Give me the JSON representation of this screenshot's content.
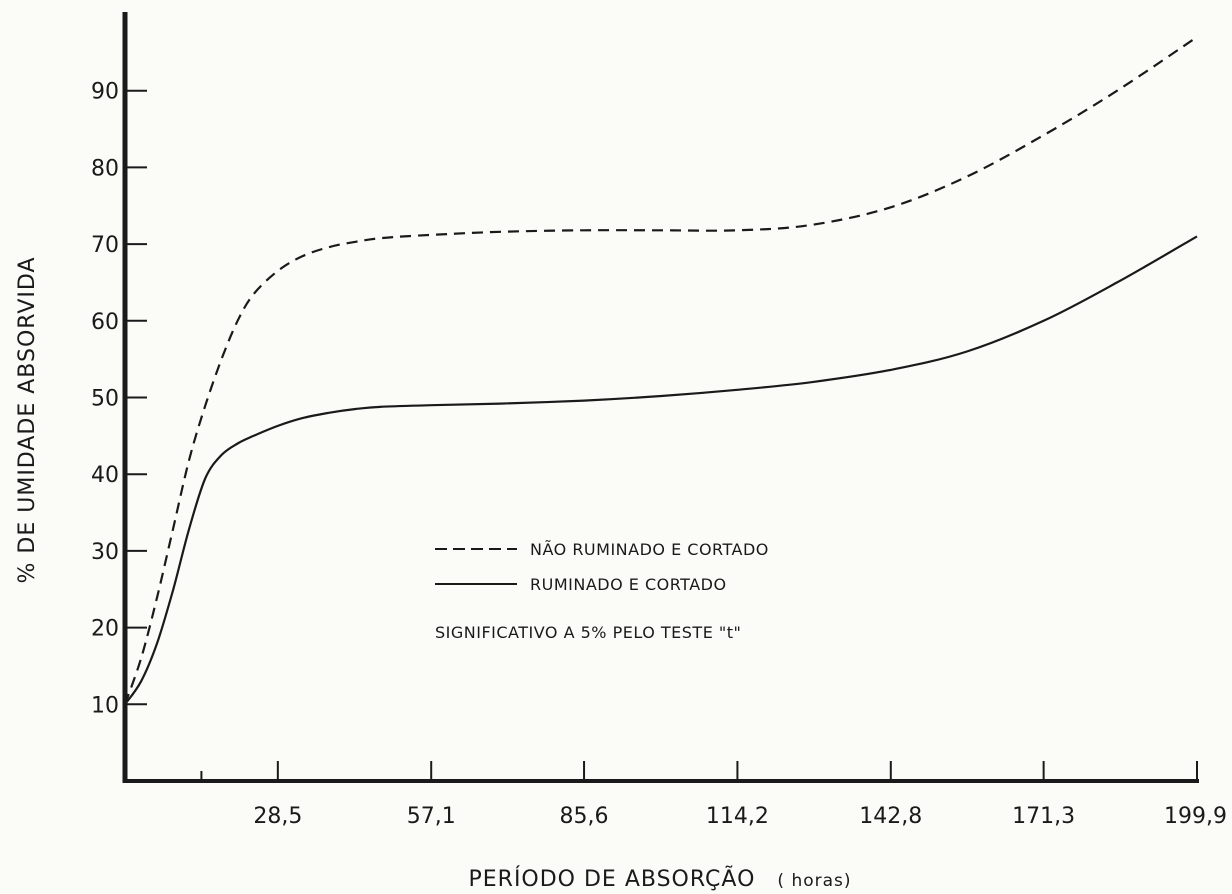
{
  "chart_data": {
    "type": "line",
    "title": "",
    "xlabel": "PERÍODO DE ABSORÇÃO",
    "xlabel_unit": "( horas)",
    "ylabel": "% DE UMIDADE ABSORVIDA",
    "xlim": [
      0,
      199.9
    ],
    "ylim": [
      0,
      100
    ],
    "x_ticks": [
      28.5,
      57.1,
      85.6,
      114.2,
      142.8,
      171.3,
      199.9
    ],
    "x_tick_labels": [
      "28,5",
      "57,1",
      "85,6",
      "114,2",
      "142,8",
      "171,3",
      "199,9"
    ],
    "y_ticks": [
      10,
      20,
      30,
      40,
      50,
      60,
      70,
      80,
      90
    ],
    "y_tick_labels": [
      "10",
      "20",
      "30",
      "40",
      "50",
      "60",
      "70",
      "80",
      "90"
    ],
    "grid": false,
    "legend_position": "center-right",
    "note": "SIGNIFICATIVO A 5% PELO TESTE \"t\"",
    "series": [
      {
        "name": "NÃO RUMINADO E CORTADO",
        "style": "dashed",
        "x": [
          0,
          3,
          6,
          9,
          12,
          15,
          18,
          21,
          24,
          28.5,
          33,
          38,
          43,
          48,
          57.1,
          70,
          85.6,
          100,
          114.2,
          128,
          142.8,
          157,
          171.3,
          185,
          199.9
        ],
        "y": [
          10,
          16,
          24,
          33,
          42,
          49,
          55,
          60,
          63.5,
          66.5,
          68.4,
          69.6,
          70.3,
          70.8,
          71.2,
          71.6,
          71.8,
          71.8,
          71.8,
          72.5,
          74.8,
          78.8,
          84.2,
          90,
          97
        ]
      },
      {
        "name": "RUMINADO E CORTADO",
        "style": "solid",
        "x": [
          0,
          3,
          6,
          9,
          12,
          15,
          18,
          21,
          24,
          28.5,
          33,
          38,
          43,
          48,
          57.1,
          70,
          85.6,
          100,
          114.2,
          128,
          142.8,
          157,
          171.3,
          185,
          199.9
        ],
        "y": [
          10,
          13,
          18,
          25,
          33,
          39.5,
          42.5,
          44,
          45,
          46.3,
          47.3,
          48,
          48.5,
          48.8,
          49,
          49.2,
          49.6,
          50.2,
          51,
          52,
          53.6,
          56,
          60,
          65,
          71
        ]
      }
    ]
  },
  "colors": {
    "ink": "#1a1a1a",
    "paper": "#fbfbf7"
  }
}
